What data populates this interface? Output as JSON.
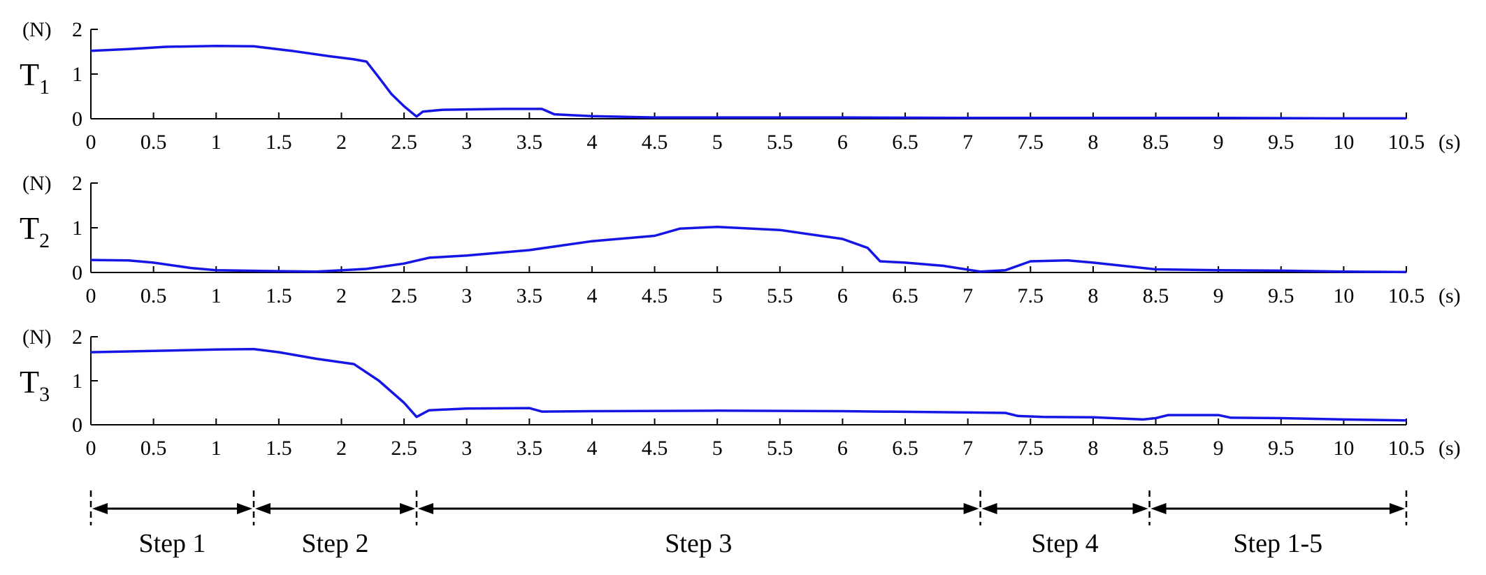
{
  "chart_data": [
    {
      "type": "line",
      "ylabel": "T",
      "ylabel_sub": "1",
      "y_unit": "(N)",
      "x_unit": "(s)",
      "xlim": [
        0,
        10.5
      ],
      "ylim": [
        0,
        2
      ],
      "x_ticks": [
        "0",
        "0.5",
        "1",
        "1.5",
        "2",
        "2.5",
        "3",
        "3.5",
        "4",
        "4.5",
        "5",
        "5.5",
        "6",
        "6.5",
        "7",
        "7.5",
        "8",
        "8.5",
        "9",
        "9.5",
        "10",
        "10.5"
      ],
      "y_ticks": [
        "0",
        "1",
        "2"
      ],
      "color": "#1515e6",
      "series": [
        {
          "x": [
            0,
            0.3,
            0.6,
            1.0,
            1.3,
            1.6,
            1.9,
            2.1,
            2.2,
            2.3,
            2.4,
            2.5,
            2.6,
            2.65,
            2.8,
            3.0,
            3.3,
            3.6,
            3.7,
            4.0,
            4.5,
            5,
            6,
            7,
            8,
            9,
            10,
            10.5
          ],
          "y": [
            1.52,
            1.56,
            1.61,
            1.63,
            1.62,
            1.52,
            1.4,
            1.33,
            1.28,
            0.92,
            0.55,
            0.28,
            0.05,
            0.16,
            0.2,
            0.21,
            0.22,
            0.22,
            0.1,
            0.06,
            0.03,
            0.03,
            0.03,
            0.02,
            0.02,
            0.02,
            0.01,
            0.01
          ]
        }
      ]
    },
    {
      "type": "line",
      "ylabel": "T",
      "ylabel_sub": "2",
      "y_unit": "(N)",
      "x_unit": "(s)",
      "xlim": [
        0,
        10.5
      ],
      "ylim": [
        0,
        2
      ],
      "x_ticks": [
        "0",
        "0.5",
        "1",
        "1.5",
        "2",
        "2.5",
        "3",
        "3.5",
        "4",
        "4.5",
        "5",
        "5.5",
        "6",
        "6.5",
        "7",
        "7.5",
        "8",
        "8.5",
        "9",
        "9.5",
        "10",
        "10.5"
      ],
      "y_ticks": [
        "0",
        "1",
        "2"
      ],
      "color": "#1515e6",
      "series": [
        {
          "x": [
            0,
            0.3,
            0.5,
            0.8,
            1.0,
            1.5,
            1.8,
            2.2,
            2.5,
            2.7,
            3.0,
            3.5,
            4.0,
            4.5,
            4.7,
            5.0,
            5.5,
            6.0,
            6.2,
            6.3,
            6.5,
            6.8,
            7.1,
            7.3,
            7.5,
            7.8,
            8.0,
            8.5,
            9.0,
            9.5,
            10,
            10.5
          ],
          "y": [
            0.28,
            0.27,
            0.22,
            0.1,
            0.05,
            0.03,
            0.02,
            0.08,
            0.2,
            0.33,
            0.38,
            0.5,
            0.7,
            0.82,
            0.98,
            1.02,
            0.95,
            0.75,
            0.55,
            0.25,
            0.22,
            0.15,
            0.02,
            0.05,
            0.25,
            0.27,
            0.22,
            0.07,
            0.05,
            0.04,
            0.02,
            0.01
          ]
        }
      ]
    },
    {
      "type": "line",
      "ylabel": "T",
      "ylabel_sub": "3",
      "y_unit": "(N)",
      "x_unit": "(s)",
      "xlim": [
        0,
        10.5
      ],
      "ylim": [
        0,
        2
      ],
      "x_ticks": [
        "0",
        "0.5",
        "1",
        "1.5",
        "2",
        "2.5",
        "3",
        "3.5",
        "4",
        "4.5",
        "5",
        "5.5",
        "6",
        "6.5",
        "7",
        "7.5",
        "8",
        "8.5",
        "9",
        "9.5",
        "10",
        "10.5"
      ],
      "y_ticks": [
        "0",
        "1",
        "2"
      ],
      "color": "#1515e6",
      "series": [
        {
          "x": [
            0,
            0.5,
            1.0,
            1.3,
            1.5,
            1.8,
            2.1,
            2.3,
            2.5,
            2.6,
            2.7,
            3.0,
            3.5,
            3.6,
            4.0,
            5,
            6,
            7,
            7.3,
            7.4,
            7.6,
            8,
            8.4,
            8.5,
            8.6,
            9.0,
            9.1,
            9.5,
            10,
            10.5
          ],
          "y": [
            1.65,
            1.68,
            1.71,
            1.72,
            1.65,
            1.5,
            1.38,
            1.0,
            0.5,
            0.18,
            0.33,
            0.37,
            0.38,
            0.3,
            0.31,
            0.32,
            0.31,
            0.28,
            0.27,
            0.2,
            0.18,
            0.17,
            0.12,
            0.15,
            0.22,
            0.22,
            0.16,
            0.15,
            0.12,
            0.1
          ]
        }
      ]
    }
  ],
  "steps": {
    "boundaries_s": [
      0,
      1.3,
      2.6,
      7.1,
      8.45,
      10.5
    ],
    "labels": [
      "Step 1",
      "Step 2",
      "Step 3",
      "Step 4",
      "Step 1-5"
    ]
  }
}
